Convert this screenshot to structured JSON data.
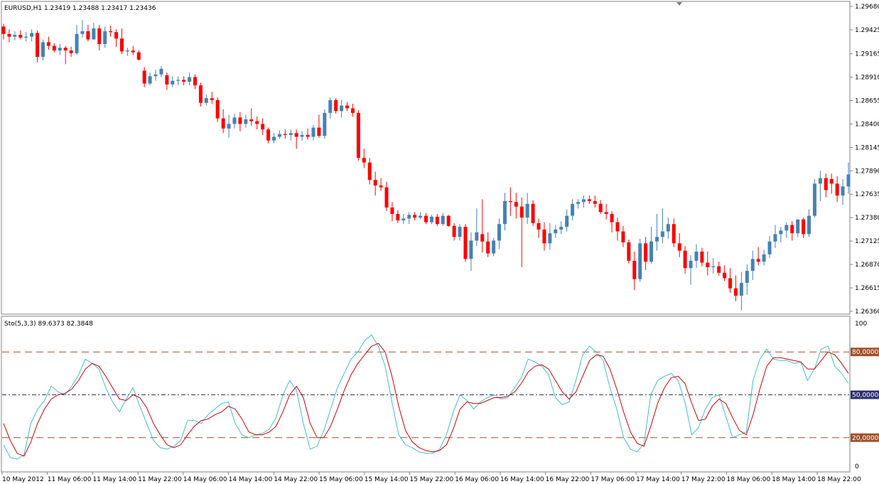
{
  "colors": {
    "bull": "#4682b4",
    "bear": "#ff0000",
    "frame": "#808080",
    "stoch_main": "#40c0c8",
    "stoch_signal": "#d00000",
    "level_outer": "#a0522d",
    "level_mid": "#2f2f6f"
  },
  "chart_data": [
    {
      "type": "candlestick",
      "title": "EURUSD,H1  1.23419 1.23488 1.23417 1.23436",
      "symbol": "EURUSD",
      "timeframe": "H1",
      "last_ohlc": {
        "open": "1.23419",
        "high": "1.23488",
        "low": "1.23417",
        "close": "1.23436"
      },
      "y_ticks": [
        "1.29680",
        "1.29425",
        "1.29165",
        "1.28910",
        "1.28655",
        "1.28400",
        "1.28145",
        "1.27890",
        "1.27635",
        "1.27380",
        "1.27125",
        "1.26870",
        "1.26615",
        "1.26360"
      ],
      "ylim": [
        1.2636,
        1.2968
      ],
      "x_ticks": [
        "10 May 2012",
        "11 May 06:00",
        "11 May 14:00",
        "11 May 22:00",
        "14 May 06:00",
        "14 May 14:00",
        "14 May 22:00",
        "15 May 06:00",
        "15 May 14:00",
        "15 May 22:00",
        "16 May 06:00",
        "16 May 14:00",
        "16 May 22:00",
        "17 May 06:00",
        "17 May 14:00",
        "17 May 22:00",
        "18 May 06:00",
        "18 May 14:00",
        "18 May 22:00"
      ],
      "candles": [
        [
          1.2946,
          1.2949,
          1.2932,
          1.2938
        ],
        [
          1.2938,
          1.2943,
          1.2929,
          1.2935
        ],
        [
          1.2935,
          1.2941,
          1.2931,
          1.2937
        ],
        [
          1.2937,
          1.2942,
          1.2932,
          1.2934
        ],
        [
          1.2934,
          1.294,
          1.293,
          1.2935
        ],
        [
          1.2935,
          1.2943,
          1.293,
          1.2939
        ],
        [
          1.2939,
          1.2942,
          1.2907,
          1.2913
        ],
        [
          1.2913,
          1.2932,
          1.2909,
          1.2929
        ],
        [
          1.2929,
          1.2935,
          1.2921,
          1.2925
        ],
        [
          1.2925,
          1.2928,
          1.2918,
          1.292
        ],
        [
          1.292,
          1.2927,
          1.2915,
          1.2923
        ],
        [
          1.2923,
          1.2925,
          1.2905,
          1.292
        ],
        [
          1.292,
          1.2924,
          1.2913,
          1.2917
        ],
        [
          1.2917,
          1.2948,
          1.2915,
          1.2938
        ],
        [
          1.2938,
          1.2953,
          1.2934,
          1.2941
        ],
        [
          1.2941,
          1.2948,
          1.293,
          1.2932
        ],
        [
          1.2932,
          1.295,
          1.2932,
          1.2944
        ],
        [
          1.2944,
          1.2948,
          1.292,
          1.2927
        ],
        [
          1.2927,
          1.2946,
          1.2923,
          1.2941
        ],
        [
          1.2941,
          1.2947,
          1.2935,
          1.294
        ],
        [
          1.294,
          1.2943,
          1.2924,
          1.2933
        ],
        [
          1.2933,
          1.2944,
          1.2916,
          1.2919
        ],
        [
          1.2919,
          1.2923,
          1.2914,
          1.292
        ],
        [
          1.292,
          1.2925,
          1.2915,
          1.2918
        ],
        [
          1.2918,
          1.292,
          1.2909,
          1.291
        ],
        [
          1.2898,
          1.2902,
          1.288,
          1.2884
        ],
        [
          1.2884,
          1.2896,
          1.2882,
          1.2892
        ],
        [
          1.2892,
          1.2899,
          1.2887,
          1.2894
        ],
        [
          1.2894,
          1.2903,
          1.2891,
          1.29
        ],
        [
          1.2893,
          1.2896,
          1.2877,
          1.2883
        ],
        [
          1.2883,
          1.2892,
          1.288,
          1.2887
        ],
        [
          1.2887,
          1.2892,
          1.2882,
          1.2888
        ],
        [
          1.2888,
          1.2892,
          1.2882,
          1.2886
        ],
        [
          1.2886,
          1.2896,
          1.2882,
          1.2891
        ],
        [
          1.2891,
          1.2894,
          1.2878,
          1.2882
        ],
        [
          1.2882,
          1.2885,
          1.2859,
          1.2863
        ],
        [
          1.2863,
          1.2872,
          1.286,
          1.2868
        ],
        [
          1.2868,
          1.2875,
          1.2862,
          1.2866
        ],
        [
          1.2866,
          1.2869,
          1.2842,
          1.2846
        ],
        [
          1.2846,
          1.2856,
          1.283,
          1.2835
        ],
        [
          1.2835,
          1.285,
          1.2825,
          1.284
        ],
        [
          1.284,
          1.2851,
          1.2835,
          1.2847
        ],
        [
          1.2847,
          1.2853,
          1.2832,
          1.284
        ],
        [
          1.284,
          1.285,
          1.2836,
          1.2845
        ],
        [
          1.2845,
          1.2857,
          1.2838,
          1.2843
        ],
        [
          1.2843,
          1.2848,
          1.2834,
          1.284
        ],
        [
          1.284,
          1.2846,
          1.2828,
          1.2834
        ],
        [
          1.2834,
          1.2836,
          1.2819,
          1.2822
        ],
        [
          1.2822,
          1.283,
          1.2819,
          1.2826
        ],
        [
          1.2826,
          1.2833,
          1.2824,
          1.2829
        ],
        [
          1.2829,
          1.2834,
          1.2824,
          1.2828
        ],
        [
          1.2828,
          1.2834,
          1.2822,
          1.283
        ],
        [
          1.283,
          1.2834,
          1.2813,
          1.2826
        ],
        [
          1.2826,
          1.2832,
          1.2822,
          1.2828
        ],
        [
          1.2828,
          1.2835,
          1.2823,
          1.2826
        ],
        [
          1.2826,
          1.2839,
          1.2822,
          1.2836
        ],
        [
          1.2836,
          1.285,
          1.2825,
          1.2827
        ],
        [
          1.2827,
          1.2856,
          1.2824,
          1.2852
        ],
        [
          1.2852,
          1.2869,
          1.2846,
          1.2866
        ],
        [
          1.2866,
          1.2868,
          1.2851,
          1.2854
        ],
        [
          1.2854,
          1.2866,
          1.2847,
          1.286
        ],
        [
          1.286,
          1.2864,
          1.2854,
          1.2857
        ],
        [
          1.2857,
          1.2862,
          1.2848,
          1.2852
        ],
        [
          1.2852,
          1.2855,
          1.28,
          1.2803
        ],
        [
          1.2803,
          1.2813,
          1.2792,
          1.2798
        ],
        [
          1.2798,
          1.2803,
          1.2774,
          1.2779
        ],
        [
          1.2779,
          1.2788,
          1.2762,
          1.2773
        ],
        [
          1.2773,
          1.2781,
          1.2767,
          1.2771
        ],
        [
          1.2771,
          1.2777,
          1.2745,
          1.2749
        ],
        [
          1.2749,
          1.2755,
          1.2734,
          1.2742
        ],
        [
          1.2742,
          1.2746,
          1.2732,
          1.2735
        ],
        [
          1.2735,
          1.2742,
          1.2731,
          1.2737
        ],
        [
          1.2737,
          1.2744,
          1.2731,
          1.2741
        ],
        [
          1.2741,
          1.2744,
          1.2735,
          1.2738
        ],
        [
          1.2738,
          1.2744,
          1.2736,
          1.274
        ],
        [
          1.274,
          1.2743,
          1.2731,
          1.2733
        ],
        [
          1.2733,
          1.2741,
          1.2731,
          1.2739
        ],
        [
          1.2739,
          1.2742,
          1.2729,
          1.2731
        ],
        [
          1.2731,
          1.2743,
          1.2729,
          1.274
        ],
        [
          1.274,
          1.2741,
          1.2728,
          1.2729
        ],
        [
          1.2729,
          1.2732,
          1.2713,
          1.2717
        ],
        [
          1.2717,
          1.2731,
          1.2713,
          1.2728
        ],
        [
          1.2728,
          1.2731,
          1.269,
          1.2693
        ],
        [
          1.2693,
          1.2722,
          1.268,
          1.2713
        ],
        [
          1.2713,
          1.2748,
          1.2707,
          1.2722
        ],
        [
          1.272,
          1.2758,
          1.27,
          1.2712
        ],
        [
          1.2712,
          1.2722,
          1.2695,
          1.2699
        ],
        [
          1.2699,
          1.2716,
          1.2696,
          1.2713
        ],
        [
          1.2713,
          1.2737,
          1.2704,
          1.2731
        ],
        [
          1.2731,
          1.2765,
          1.2724,
          1.2756
        ],
        [
          1.2756,
          1.2771,
          1.274,
          1.2755
        ],
        [
          1.2755,
          1.2765,
          1.2737,
          1.275
        ],
        [
          1.275,
          1.276,
          1.2684,
          1.2738
        ],
        [
          1.2738,
          1.2765,
          1.2731,
          1.2753
        ],
        [
          1.2753,
          1.2757,
          1.2729,
          1.2732
        ],
        [
          1.2732,
          1.2737,
          1.2716,
          1.2725
        ],
        [
          1.2725,
          1.2733,
          1.2702,
          1.271
        ],
        [
          1.271,
          1.2732,
          1.2703,
          1.2721
        ],
        [
          1.2721,
          1.273,
          1.2716,
          1.2725
        ],
        [
          1.2725,
          1.2734,
          1.272,
          1.2728
        ],
        [
          1.2728,
          1.2747,
          1.2723,
          1.274
        ],
        [
          1.274,
          1.2758,
          1.2735,
          1.2753
        ],
        [
          1.2753,
          1.2758,
          1.2748,
          1.2755
        ],
        [
          1.2755,
          1.2762,
          1.2749,
          1.2758
        ],
        [
          1.2758,
          1.2762,
          1.2753,
          1.2756
        ],
        [
          1.2756,
          1.2762,
          1.2749,
          1.2753
        ],
        [
          1.2753,
          1.2757,
          1.2742,
          1.2744
        ],
        [
          1.2744,
          1.2753,
          1.2736,
          1.2742
        ],
        [
          1.2742,
          1.2745,
          1.2722,
          1.2733
        ],
        [
          1.2733,
          1.2738,
          1.2713,
          1.2723
        ],
        [
          1.2723,
          1.2729,
          1.2706,
          1.2711
        ],
        [
          1.2711,
          1.2714,
          1.2688,
          1.2691
        ],
        [
          1.2691,
          1.2701,
          1.2659,
          1.2671
        ],
        [
          1.2671,
          1.2715,
          1.2668,
          1.271
        ],
        [
          1.271,
          1.2717,
          1.2681,
          1.269
        ],
        [
          1.269,
          1.2728,
          1.2688,
          1.2712
        ],
        [
          1.2712,
          1.2742,
          1.2702,
          1.2717
        ],
        [
          1.2717,
          1.2748,
          1.271,
          1.2723
        ],
        [
          1.2723,
          1.2738,
          1.2715,
          1.2731
        ],
        [
          1.2731,
          1.2737,
          1.2706,
          1.271
        ],
        [
          1.271,
          1.2721,
          1.2695,
          1.2702
        ],
        [
          1.2702,
          1.2707,
          1.2677,
          1.2683
        ],
        [
          1.2683,
          1.2697,
          1.2665,
          1.2691
        ],
        [
          1.2691,
          1.2709,
          1.2683,
          1.2701
        ],
        [
          1.2701,
          1.2705,
          1.2685,
          1.2689
        ],
        [
          1.2689,
          1.2701,
          1.2675,
          1.2684
        ],
        [
          1.2684,
          1.2694,
          1.2677,
          1.2685
        ],
        [
          1.2685,
          1.269,
          1.2675,
          1.2678
        ],
        [
          1.2678,
          1.2686,
          1.2669,
          1.2672
        ],
        [
          1.2672,
          1.2683,
          1.2656,
          1.2661
        ],
        [
          1.2661,
          1.2675,
          1.2647,
          1.2653
        ],
        [
          1.2653,
          1.2679,
          1.2637,
          1.2667
        ],
        [
          1.2667,
          1.2687,
          1.2654,
          1.268
        ],
        [
          1.268,
          1.2702,
          1.267,
          1.2693
        ],
        [
          1.2693,
          1.2706,
          1.2686,
          1.269
        ],
        [
          1.269,
          1.2703,
          1.2686,
          1.2698
        ],
        [
          1.2698,
          1.2718,
          1.2694,
          1.2712
        ],
        [
          1.2712,
          1.273,
          1.2705,
          1.272
        ],
        [
          1.272,
          1.2728,
          1.2711,
          1.2724
        ],
        [
          1.2724,
          1.2733,
          1.2716,
          1.273
        ],
        [
          1.273,
          1.2734,
          1.2713,
          1.2721
        ],
        [
          1.2721,
          1.2736,
          1.2717,
          1.2736
        ],
        [
          1.2736,
          1.2738,
          1.2716,
          1.272
        ],
        [
          1.272,
          1.2747,
          1.2717,
          1.274
        ],
        [
          1.274,
          1.278,
          1.2738,
          1.2775
        ],
        [
          1.2775,
          1.2789,
          1.2756,
          1.2781
        ],
        [
          1.2781,
          1.2786,
          1.276,
          1.2768
        ],
        [
          1.278,
          1.2786,
          1.2764,
          1.2775
        ],
        [
          1.2775,
          1.2783,
          1.2755,
          1.2762
        ],
        [
          1.2762,
          1.278,
          1.2752,
          1.2772
        ],
        [
          1.2772,
          1.2798,
          1.2764,
          1.2785
        ]
      ]
    },
    {
      "type": "line",
      "title": "Sto(5,3,3) 89.6373 82.3848",
      "indicator": "Sto(5,3,3)",
      "values_text": "89.6373 82.3848",
      "ylim": [
        0,
        100
      ],
      "y_ticks": [
        "100",
        "0"
      ],
      "levels": [
        {
          "value": 80,
          "label": "80,00000"
        },
        {
          "value": 50,
          "label": "50,00000"
        },
        {
          "value": 20,
          "label": "20,00000"
        }
      ],
      "series": [
        {
          "name": "main",
          "values": [
            15,
            6,
            5,
            8,
            30,
            40,
            46,
            56,
            52,
            50,
            56,
            64,
            75,
            72,
            68,
            55,
            45,
            38,
            47,
            55,
            42,
            30,
            18,
            13,
            12,
            14,
            18,
            32,
            32,
            30,
            36,
            40,
            44,
            45,
            30,
            22,
            20,
            22,
            23,
            26,
            34,
            50,
            60,
            53,
            30,
            12,
            14,
            25,
            40,
            55,
            65,
            75,
            80,
            88,
            92,
            84,
            70,
            45,
            22,
            15,
            13,
            10,
            9,
            9,
            12,
            22,
            38,
            50,
            46,
            40,
            45,
            48,
            50,
            47,
            48,
            55,
            62,
            75,
            73,
            70,
            64,
            48,
            43,
            45,
            60,
            78,
            84,
            80,
            74,
            55,
            40,
            20,
            12,
            10,
            16,
            50,
            60,
            63,
            65,
            60,
            45,
            22,
            27,
            40,
            48,
            50,
            35,
            20,
            22,
            24,
            60,
            75,
            82,
            75,
            74,
            74,
            72,
            73,
            60,
            68,
            82,
            84,
            70,
            65,
            58
          ],
          "_note": "approximate sample of fast line"
        },
        {
          "name": "signal",
          "values": [
            30,
            18,
            9,
            7,
            17,
            30,
            40,
            47,
            50,
            51,
            54,
            60,
            68,
            72,
            70,
            63,
            55,
            47,
            46,
            50,
            48,
            41,
            30,
            22,
            15,
            13,
            15,
            22,
            28,
            32,
            33,
            36,
            38,
            42,
            40,
            33,
            24,
            22,
            22,
            24,
            28,
            38,
            50,
            56,
            48,
            30,
            20,
            20,
            28,
            40,
            53,
            64,
            72,
            78,
            84,
            86,
            80,
            63,
            42,
            25,
            17,
            13,
            11,
            10,
            11,
            15,
            26,
            40,
            45,
            44,
            44,
            46,
            48,
            48,
            49,
            52,
            58,
            66,
            70,
            71,
            68,
            60,
            52,
            47,
            52,
            63,
            74,
            78,
            77,
            68,
            54,
            38,
            24,
            16,
            14,
            28,
            44,
            55,
            62,
            63,
            58,
            44,
            32,
            33,
            42,
            47,
            44,
            34,
            25,
            22,
            36,
            54,
            70,
            76,
            76,
            75,
            74,
            73,
            68,
            68,
            74,
            80,
            78,
            72,
            65
          ]
        }
      ]
    }
  ]
}
